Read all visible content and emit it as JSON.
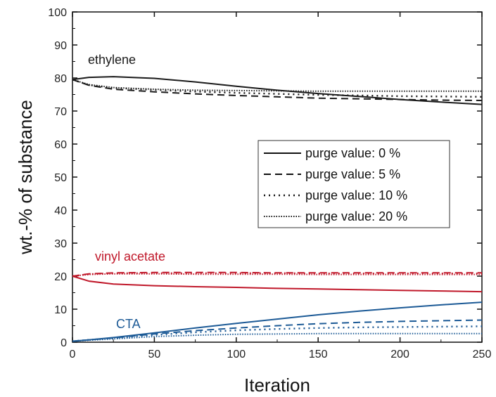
{
  "chart_data": {
    "type": "line",
    "xlabel": "Iteration",
    "ylabel": "wt.-% of substance",
    "xlim": [
      0,
      250
    ],
    "ylim": [
      0,
      100
    ],
    "xticks": [
      "0",
      "50",
      "100",
      "150",
      "200",
      "250"
    ],
    "yticks": [
      "0",
      "10",
      "20",
      "30",
      "40",
      "50",
      "60",
      "70",
      "80",
      "90",
      "100"
    ],
    "grid": false,
    "legend_position": "right-center",
    "legend": [
      {
        "label": "purge value: 0 %",
        "style": "solid"
      },
      {
        "label": "purge value: 5 %",
        "style": "dashed"
      },
      {
        "label": "purge value: 10 %",
        "style": "dotted"
      },
      {
        "label": "purge value: 20 %",
        "style": "dense-dotted"
      }
    ],
    "groups": [
      {
        "label": "ethylene",
        "color": "#1a1a1a",
        "series": [
          {
            "purge": "purge value: 0 %",
            "style": "solid",
            "x": [
              0,
              10,
              25,
              50,
              75,
              100,
              125,
              150,
              175,
              200,
              225,
              250
            ],
            "y": [
              79.5,
              80.2,
              80.4,
              79.9,
              78.8,
              77.5,
              76.3,
              75.3,
              74.4,
              73.5,
              72.7,
              72.0
            ]
          },
          {
            "purge": "purge value: 5 %",
            "style": "dashed",
            "x": [
              0,
              10,
              25,
              50,
              75,
              100,
              125,
              150,
              175,
              200,
              225,
              250
            ],
            "y": [
              79.5,
              77.8,
              76.6,
              75.8,
              75.2,
              74.7,
              74.3,
              73.9,
              73.7,
              73.5,
              73.3,
              73.2
            ]
          },
          {
            "purge": "purge value: 10 %",
            "style": "dotted",
            "x": [
              0,
              10,
              25,
              50,
              75,
              100,
              125,
              150,
              175,
              200,
              225,
              250
            ],
            "y": [
              79.5,
              77.9,
              77.0,
              76.4,
              75.9,
              75.5,
              75.2,
              74.9,
              74.7,
              74.5,
              74.4,
              74.3
            ]
          },
          {
            "purge": "purge value: 20 %",
            "style": "dense-dotted",
            "x": [
              0,
              10,
              25,
              50,
              75,
              100,
              125,
              150,
              175,
              200,
              225,
              250
            ],
            "y": [
              79.5,
              78.0,
              77.1,
              76.6,
              76.3,
              76.2,
              76.1,
              76.0,
              76.0,
              76.0,
              76.0,
              76.0
            ]
          }
        ]
      },
      {
        "label": "vinyl acetate",
        "color": "#c0182a",
        "series": [
          {
            "purge": "purge value: 0 %",
            "style": "solid",
            "x": [
              0,
              10,
              25,
              50,
              75,
              100,
              125,
              150,
              175,
              200,
              225,
              250
            ],
            "y": [
              20.0,
              18.5,
              17.6,
              17.1,
              16.8,
              16.6,
              16.3,
              16.1,
              15.9,
              15.7,
              15.5,
              15.3
            ]
          },
          {
            "purge": "purge value: 5 %",
            "style": "dashed",
            "x": [
              0,
              10,
              25,
              50,
              75,
              100,
              125,
              150,
              175,
              200,
              225,
              250
            ],
            "y": [
              20.0,
              20.7,
              21.0,
              21.1,
              21.1,
              21.1,
              21.0,
              21.0,
              21.0,
              21.0,
              21.0,
              21.0
            ]
          },
          {
            "purge": "purge value: 10 %",
            "style": "dotted",
            "x": [
              0,
              10,
              25,
              50,
              75,
              100,
              125,
              150,
              175,
              200,
              225,
              250
            ],
            "y": [
              20.0,
              20.6,
              20.9,
              20.9,
              20.9,
              20.9,
              20.9,
              20.8,
              20.8,
              20.8,
              20.8,
              20.8
            ]
          },
          {
            "purge": "purge value: 20 %",
            "style": "dense-dotted",
            "x": [
              0,
              10,
              25,
              50,
              75,
              100,
              125,
              150,
              175,
              200,
              225,
              250
            ],
            "y": [
              20.0,
              20.5,
              20.7,
              20.7,
              20.6,
              20.6,
              20.6,
              20.5,
              20.5,
              20.5,
              20.5,
              20.5
            ]
          }
        ]
      },
      {
        "label": "CTA",
        "color": "#1c5a96",
        "series": [
          {
            "purge": "purge value: 0 %",
            "style": "solid",
            "x": [
              0,
              10,
              25,
              50,
              75,
              100,
              125,
              150,
              175,
              200,
              225,
              250
            ],
            "y": [
              0.3,
              0.7,
              1.4,
              2.8,
              4.3,
              5.7,
              7.0,
              8.3,
              9.4,
              10.4,
              11.3,
              12.1
            ]
          },
          {
            "purge": "purge value: 5 %",
            "style": "dashed",
            "x": [
              0,
              10,
              25,
              50,
              75,
              100,
              125,
              150,
              175,
              200,
              225,
              250
            ],
            "y": [
              0.3,
              0.7,
              1.3,
              2.5,
              3.5,
              4.3,
              5.0,
              5.6,
              6.0,
              6.3,
              6.5,
              6.7
            ]
          },
          {
            "purge": "purge value: 10 %",
            "style": "dotted",
            "x": [
              0,
              10,
              25,
              50,
              75,
              100,
              125,
              150,
              175,
              200,
              225,
              250
            ],
            "y": [
              0.3,
              0.7,
              1.2,
              2.2,
              3.0,
              3.6,
              4.0,
              4.3,
              4.5,
              4.6,
              4.7,
              4.8
            ]
          },
          {
            "purge": "purge value: 20 %",
            "style": "dense-dotted",
            "x": [
              0,
              10,
              25,
              50,
              75,
              100,
              125,
              150,
              175,
              200,
              225,
              250
            ],
            "y": [
              0.3,
              0.6,
              1.0,
              1.7,
              2.1,
              2.4,
              2.5,
              2.6,
              2.6,
              2.6,
              2.6,
              2.6
            ]
          }
        ]
      }
    ]
  }
}
